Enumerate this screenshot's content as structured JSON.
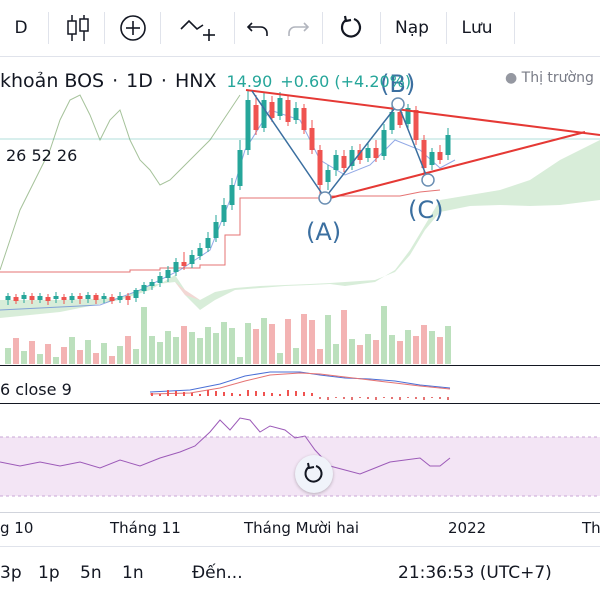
{
  "toolbar": {
    "interval_btn": "D",
    "publish_label": "Nạp",
    "save_label": "Lưu",
    "icons": [
      "candles-icon",
      "add-indicator-icon",
      "drawing-tool-icon",
      "undo-icon",
      "redo-icon",
      "reload-icon"
    ]
  },
  "legend": {
    "symbol": "khoản BOS",
    "interval": "1D",
    "exchange": "HNX",
    "price": "14.90",
    "change": "+0.60 (+4.20%)",
    "market_status": "Thị trường"
  },
  "indicator_values": "26 52 26",
  "macd_label": "6 close 9",
  "annotations": {
    "a": "(A)",
    "b": "(B)",
    "c": "(C)"
  },
  "x_axis": {
    "labels": [
      "g 10",
      "Tháng 11",
      "Tháng Mười hai",
      "2022",
      "Th"
    ]
  },
  "bottom_bar": {
    "ranges": [
      "3p",
      "1p",
      "5n",
      "1n"
    ],
    "goto_label": "Đến...",
    "clock": "21:36:53 (UTC+7)"
  },
  "colors": {
    "up": "#26a69a",
    "down": "#ef5350",
    "pattern": "#e53935",
    "wave": "#3b6fa0",
    "cloud": "#c8e6c9",
    "rsi_bg": "#f3e5f5"
  }
}
